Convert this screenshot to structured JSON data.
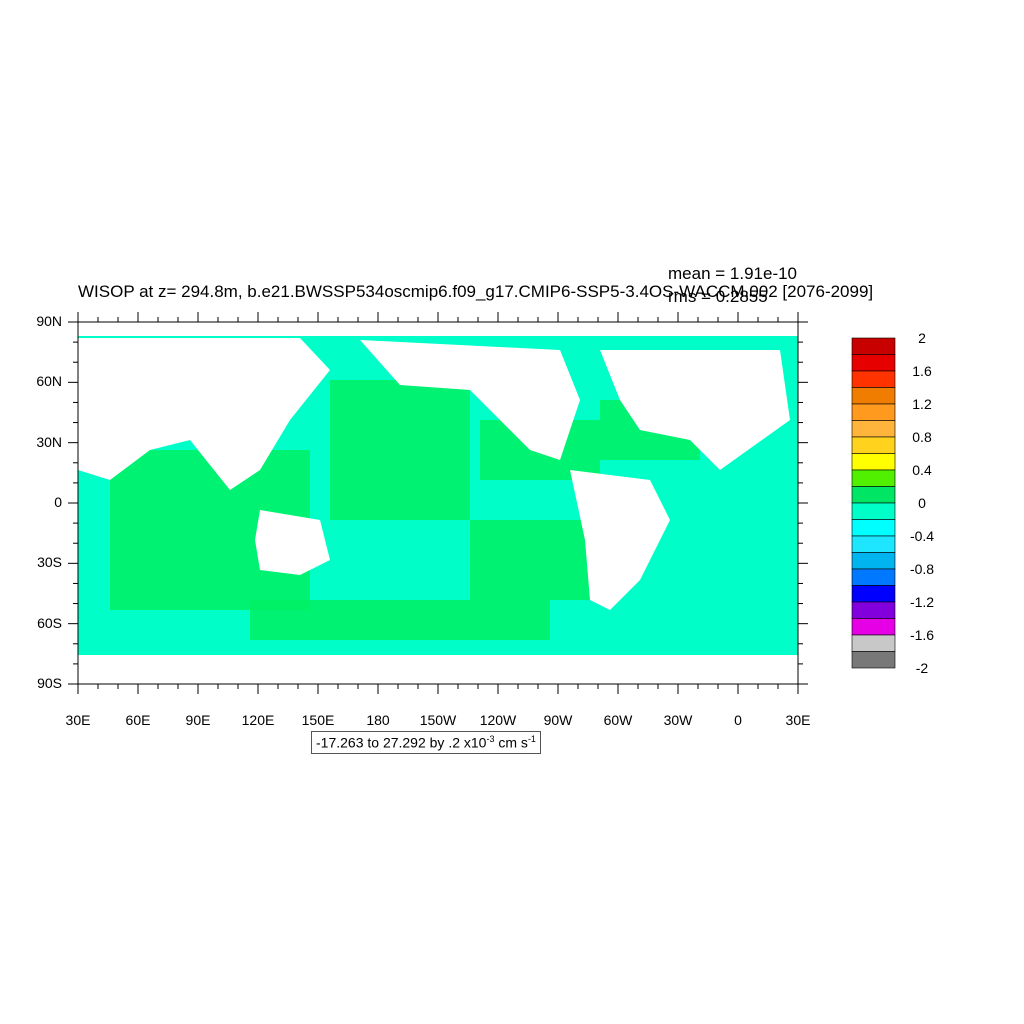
{
  "title": "WISOP at z= 294.8m, b.e21.BWSSP534oscmip6.f09_g17.CMIP6-SSP5-3.4OS-WACCM.002 [2076-2099]",
  "stats": {
    "mean": "mean = 1.91e-10",
    "rms": "rms = 0.2855"
  },
  "lat_labels": [
    "90N",
    "60N",
    "30N",
    "0",
    "30S",
    "60S",
    "90S"
  ],
  "lon_labels": [
    "30E",
    "60E",
    "90E",
    "120E",
    "150E",
    "180",
    "150W",
    "120W",
    "90W",
    "60W",
    "30W",
    "0",
    "30E"
  ],
  "footer": {
    "prefix": "-17.263 to 27.292 by .2 x10",
    "exponent": "-3",
    "unit": " cm s",
    "unit_exp": "-1"
  },
  "colorbar": {
    "labels": [
      "2",
      "1.6",
      "1.2",
      "0.8",
      "0.4",
      "0",
      "-0.4",
      "-0.8",
      "-1.2",
      "-1.6",
      "-2"
    ],
    "colors": [
      "#c80000",
      "#e60000",
      "#ff3300",
      "#f07d00",
      "#ff9a1e",
      "#ffb43c",
      "#ffd21e",
      "#ffff00",
      "#50f000",
      "#00e664",
      "#00ffc8",
      "#00ffff",
      "#1ee6ff",
      "#00b4f0",
      "#0078ff",
      "#0000ff",
      "#8200dc",
      "#e600e6",
      "#c8c8c8",
      "#787878"
    ]
  },
  "palette": {
    "ocean_base": "#00ffc8",
    "ocean_green": "#00f064",
    "land": "#ffffff"
  }
}
